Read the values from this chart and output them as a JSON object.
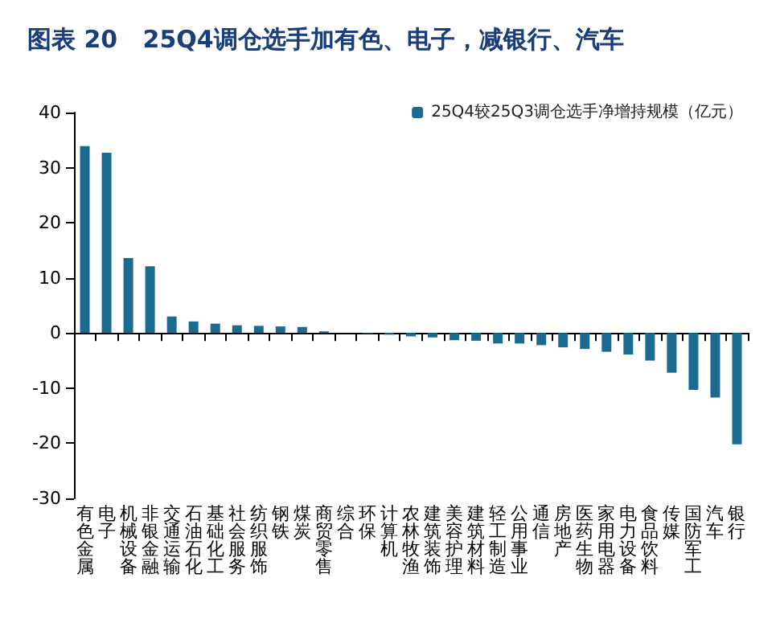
{
  "chart_data": {
    "type": "bar",
    "title": "图表 20   25Q4调仓选手加有色、电子，减银行、汽车",
    "categories": [
      "有色金属",
      "电子",
      "机械设备",
      "非银金融",
      "交通运输",
      "石油石化",
      "基础化工",
      "社会服务",
      "纺织服饰",
      "钢铁",
      "煤炭",
      "商贸零售",
      "综合",
      "环保",
      "计算机",
      "农林牧渔",
      "建筑装饰",
      "美容护理",
      "建筑材料",
      "轻工制造",
      "公用事业",
      "通信",
      "房地产",
      "医药生物",
      "家用电器",
      "电力设备",
      "食品饮料",
      "传媒",
      "国防军工",
      "汽车",
      "银行"
    ],
    "series": [
      {
        "name": "25Q4较25Q3调仓选手净增持规模（亿元）",
        "color": "#1b6a8f",
        "values": [
          33.9,
          32.7,
          13.6,
          12.1,
          3.0,
          2.1,
          1.7,
          1.4,
          1.3,
          1.2,
          1.1,
          0.3,
          0,
          -0.1,
          -0.3,
          -0.6,
          -0.8,
          -1.3,
          -1.4,
          -1.9,
          -1.9,
          -2.2,
          -2.6,
          -2.9,
          -3.4,
          -3.9,
          -5.0,
          -7.2,
          -10.3,
          -11.7,
          -20.2
        ]
      }
    ],
    "ylim": [
      -30,
      40
    ],
    "yticks": [
      -30,
      -20,
      -10,
      0,
      10,
      20,
      30,
      40
    ],
    "legend": "top right"
  }
}
